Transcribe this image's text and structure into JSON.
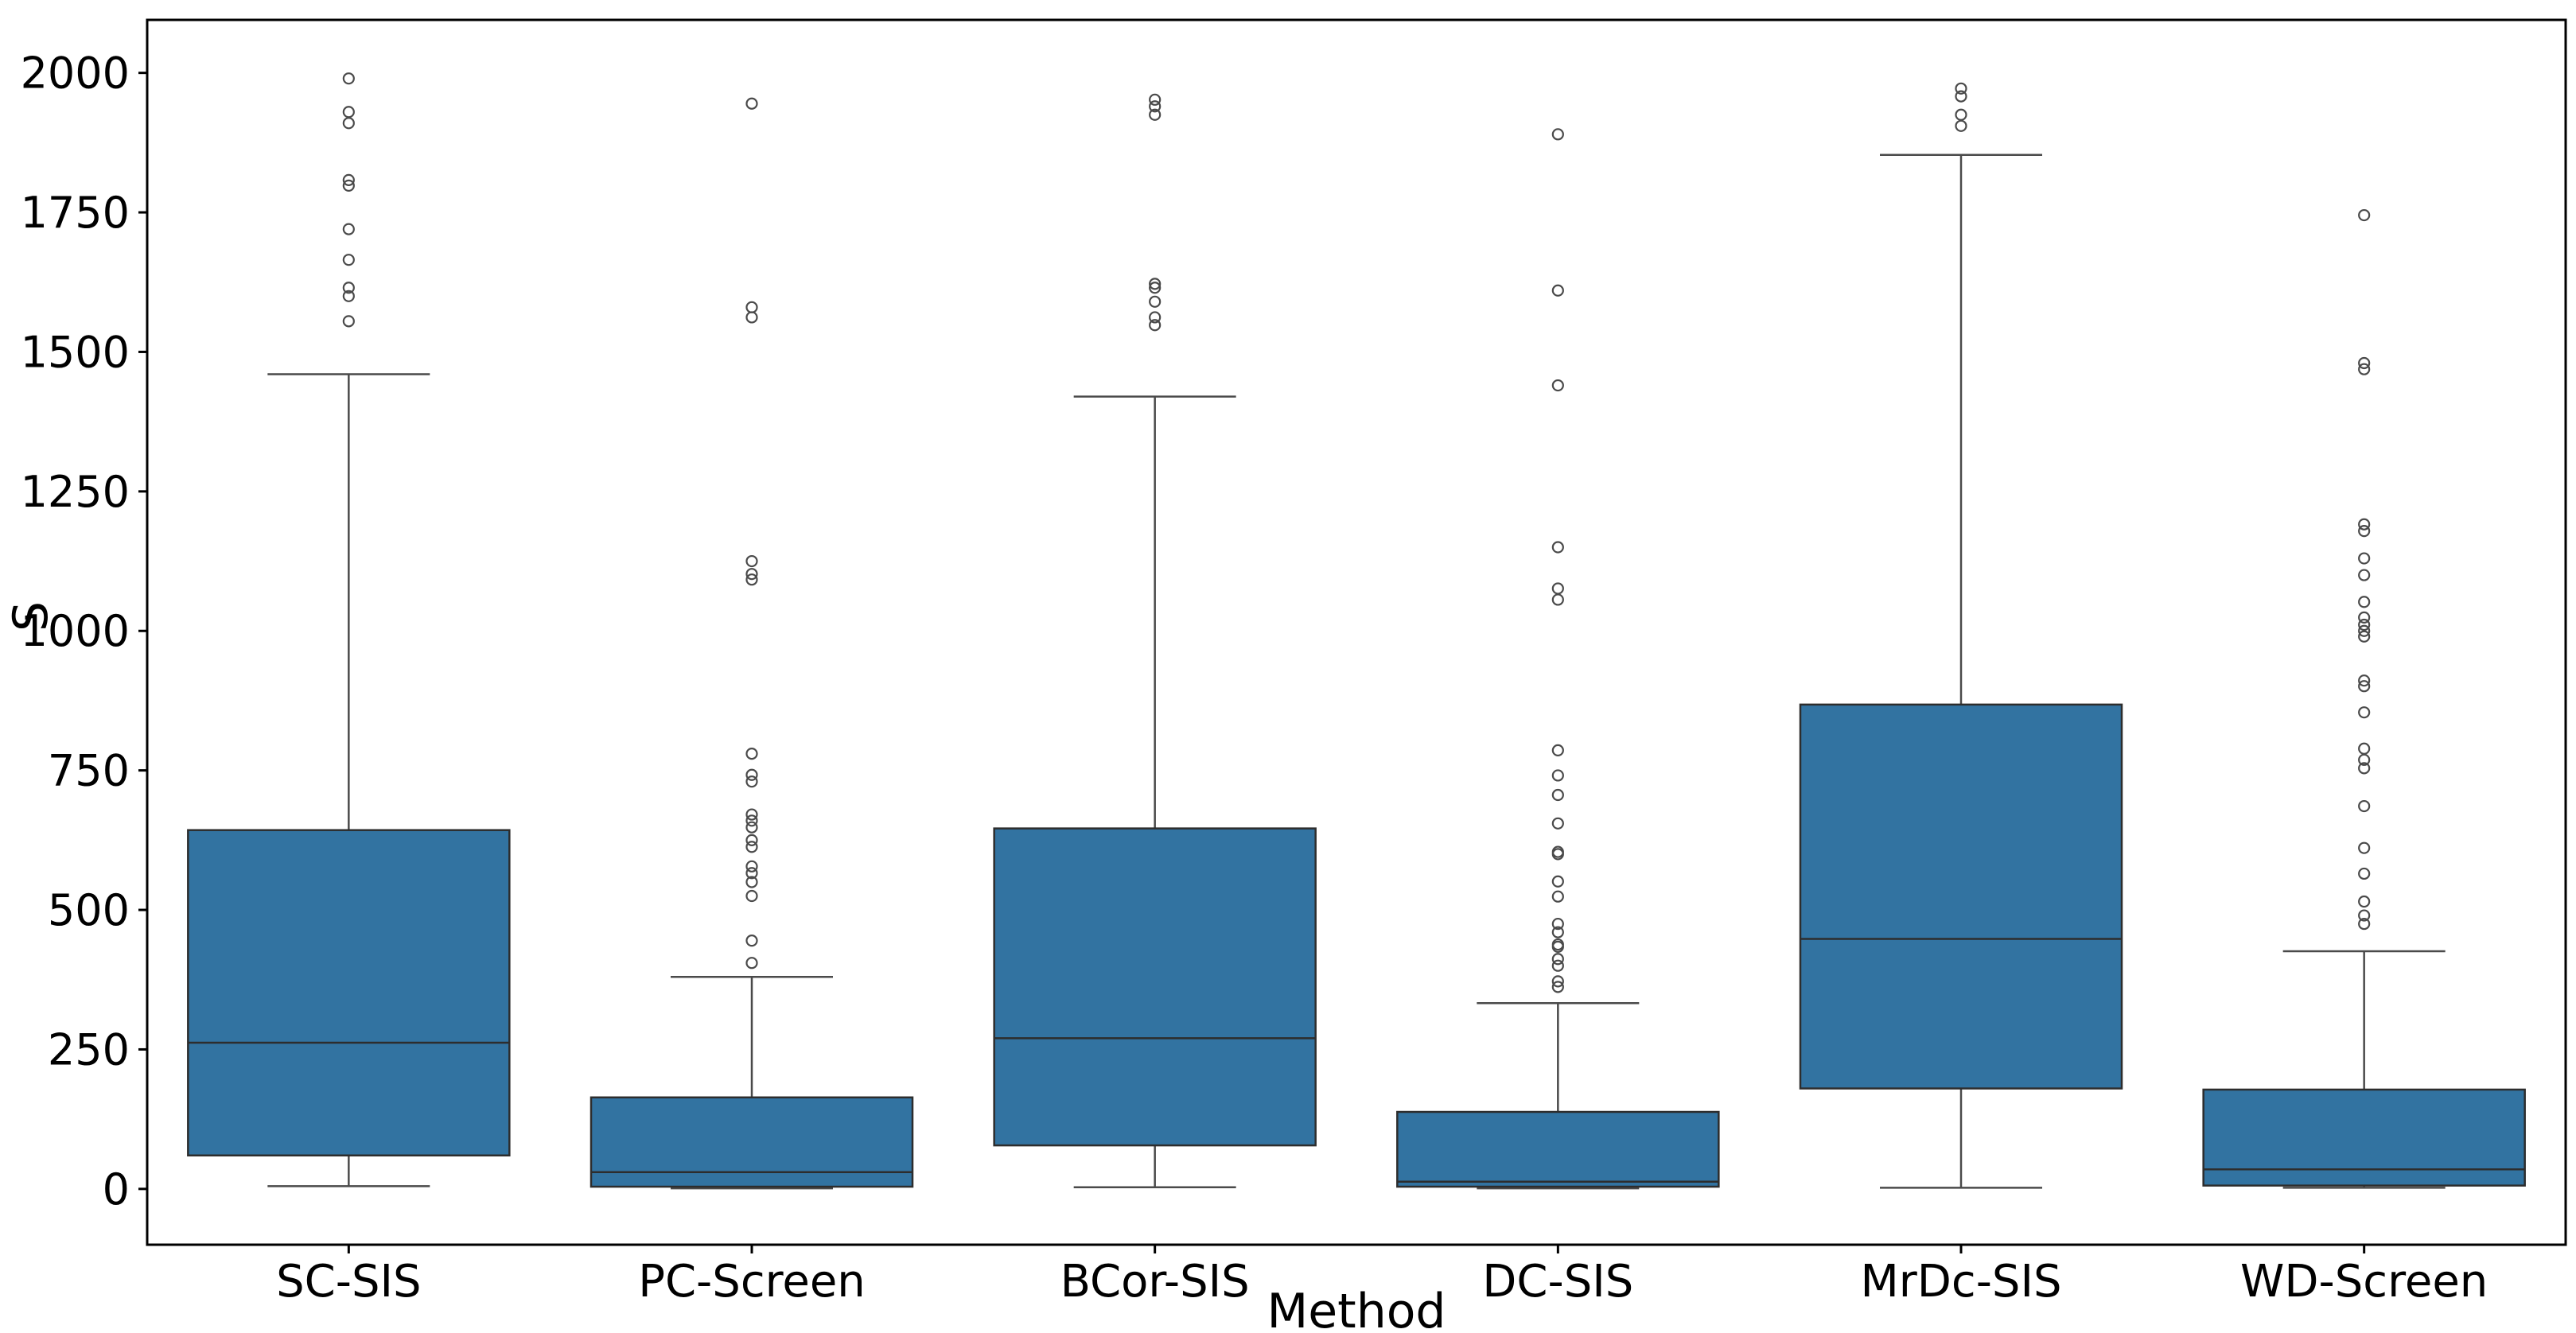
{
  "figure": {
    "background": "#ffffff"
  },
  "style": {
    "box_fill": "#3273a1",
    "box_edge": "#2d2d2d",
    "median_color": "#2d2d2d",
    "whisker_color": "#4a4a4a",
    "flier_edge": "#4a4a4a",
    "spine_color": "#000000",
    "tick_color": "#000000",
    "text_color": "#000000"
  },
  "chart_data": {
    "type": "box",
    "title": "",
    "xlabel": "Method",
    "ylabel": "S",
    "categories": [
      "SC-SIS",
      "PC-Screen",
      "BCor-SIS",
      "DC-SIS",
      "MrDc-SIS",
      "WD-Screen"
    ],
    "yticks": [
      0,
      250,
      500,
      750,
      1000,
      1250,
      1500,
      1750,
      2000
    ],
    "ytick_labels": [
      "0",
      "250",
      "500",
      "750",
      "1000",
      "1250",
      "1500",
      "1750",
      "2000"
    ],
    "ylim": [
      -100,
      2095
    ],
    "grid": false,
    "legend": false,
    "series": [
      {
        "name": "SC-SIS",
        "whislo": 5,
        "q1": 60,
        "med": 262,
        "q3": 643,
        "whishi": 1460,
        "fliers": [
          1555,
          1600,
          1615,
          1665,
          1720,
          1798,
          1808,
          1910,
          1930,
          1990
        ]
      },
      {
        "name": "PC-Screen",
        "whislo": 1,
        "q1": 4,
        "med": 30,
        "q3": 164,
        "whishi": 380,
        "fliers": [
          405,
          445,
          525,
          550,
          566,
          578,
          613,
          625,
          648,
          660,
          671,
          730,
          742,
          780,
          1092,
          1102,
          1125,
          1562,
          1580,
          1945
        ]
      },
      {
        "name": "BCor-SIS",
        "whislo": 3,
        "q1": 78,
        "med": 270,
        "q3": 646,
        "whishi": 1420,
        "fliers": [
          1548,
          1562,
          1590,
          1615,
          1622,
          1925,
          1940,
          1952
        ]
      },
      {
        "name": "DC-SIS",
        "whislo": 1,
        "q1": 4,
        "med": 13,
        "q3": 138,
        "whishi": 333,
        "fliers": [
          362,
          372,
          400,
          412,
          434,
          438,
          460,
          475,
          524,
          551,
          600,
          604,
          655,
          706,
          741,
          786,
          1056,
          1076,
          1150,
          1440,
          1610,
          1890
        ]
      },
      {
        "name": "MrDc-SIS",
        "whislo": 2,
        "q1": 180,
        "med": 448,
        "q3": 868,
        "whishi": 1853,
        "fliers": [
          1905,
          1925,
          1958,
          1972
        ]
      },
      {
        "name": "WD-Screen",
        "whislo": 2,
        "q1": 6,
        "med": 35,
        "q3": 178,
        "whishi": 426,
        "fliers": [
          475,
          490,
          515,
          565,
          611,
          686,
          754,
          769,
          789,
          854,
          901,
          911,
          990,
          1000,
          1011,
          1024,
          1052,
          1100,
          1130,
          1179,
          1191,
          1469,
          1480,
          1745
        ]
      }
    ]
  }
}
